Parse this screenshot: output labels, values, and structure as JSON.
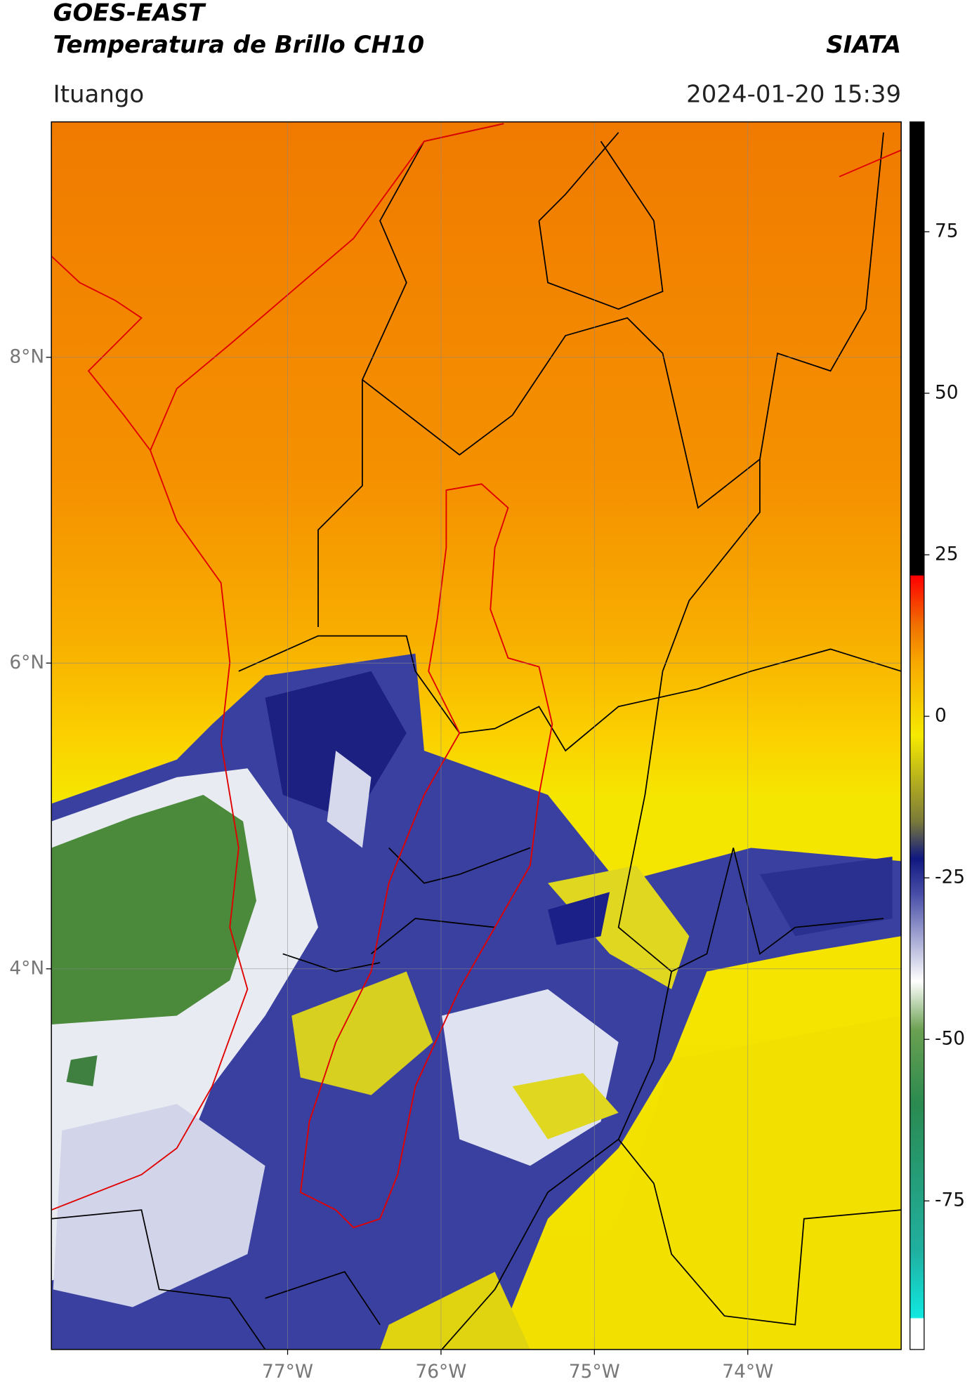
{
  "header": {
    "title": "GOES-EAST",
    "subtitle": "Temperatura de Brillo CH10",
    "org": "SIATA",
    "location": "Ituango",
    "datetime": "2024-01-20 15:39"
  },
  "map": {
    "xlim": [
      -78.54,
      -73.0
    ],
    "ylim": [
      1.51,
      9.54
    ],
    "xticks": [
      {
        "value": -77,
        "label": "77°W"
      },
      {
        "value": -76,
        "label": "76°W"
      },
      {
        "value": -75,
        "label": "75°W"
      },
      {
        "value": -74,
        "label": "74°W"
      }
    ],
    "yticks": [
      {
        "value": 8,
        "label": "8°N"
      },
      {
        "value": 6,
        "label": "6°N"
      },
      {
        "value": 4,
        "label": "4°N"
      }
    ]
  },
  "colorbar": {
    "lim": [
      -98,
      92
    ],
    "ticks": [
      75,
      50,
      25,
      0,
      -25,
      -50,
      -75
    ]
  }
}
